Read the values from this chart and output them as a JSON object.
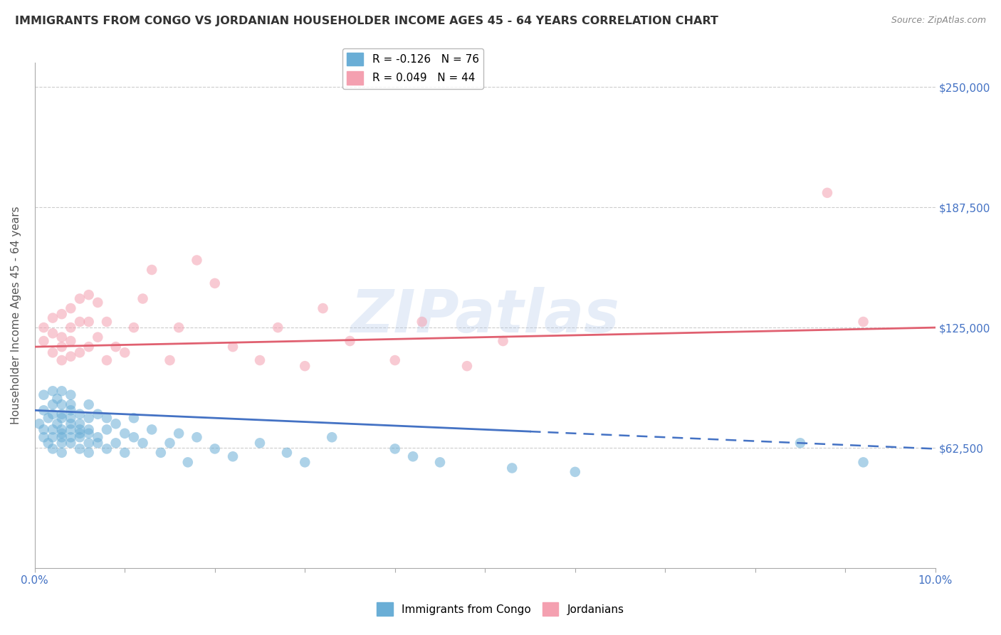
{
  "title": "IMMIGRANTS FROM CONGO VS JORDANIAN HOUSEHOLDER INCOME AGES 45 - 64 YEARS CORRELATION CHART",
  "source": "Source: ZipAtlas.com",
  "ylabel": "Householder Income Ages 45 - 64 years",
  "ytick_labels": [
    "$62,500",
    "$125,000",
    "$187,500",
    "$250,000"
  ],
  "ytick_values": [
    62500,
    125000,
    187500,
    250000
  ],
  "xlim": [
    0.0,
    0.1
  ],
  "ylim": [
    0,
    262500
  ],
  "watermark": "ZIPatlas",
  "legend_entries": [
    {
      "label": "R = -0.126   N = 76",
      "color": "#aec6e8"
    },
    {
      "label": "R = 0.049   N = 44",
      "color": "#f4b8c1"
    }
  ],
  "legend_labels": [
    "Immigrants from Congo",
    "Jordanians"
  ],
  "congo_color": "#6aaed6",
  "jordan_color": "#f4a0b0",
  "congo_line_color": "#4472c4",
  "jordan_line_color": "#e06070",
  "congo_R": -0.126,
  "congo_N": 76,
  "jordan_R": 0.049,
  "jordan_N": 44,
  "congo_x": [
    0.0005,
    0.001,
    0.001,
    0.001,
    0.001,
    0.0015,
    0.0015,
    0.002,
    0.002,
    0.002,
    0.002,
    0.002,
    0.002,
    0.0025,
    0.0025,
    0.003,
    0.003,
    0.003,
    0.003,
    0.003,
    0.003,
    0.003,
    0.003,
    0.003,
    0.004,
    0.004,
    0.004,
    0.004,
    0.004,
    0.004,
    0.004,
    0.004,
    0.005,
    0.005,
    0.005,
    0.005,
    0.005,
    0.005,
    0.006,
    0.006,
    0.006,
    0.006,
    0.006,
    0.006,
    0.007,
    0.007,
    0.007,
    0.008,
    0.008,
    0.008,
    0.009,
    0.009,
    0.01,
    0.01,
    0.011,
    0.011,
    0.012,
    0.013,
    0.014,
    0.015,
    0.016,
    0.017,
    0.018,
    0.02,
    0.022,
    0.025,
    0.028,
    0.03,
    0.033,
    0.04,
    0.042,
    0.045,
    0.053,
    0.06,
    0.085,
    0.092
  ],
  "congo_y": [
    75000,
    82000,
    68000,
    90000,
    72000,
    78000,
    65000,
    85000,
    72000,
    80000,
    68000,
    92000,
    62000,
    75000,
    88000,
    70000,
    78000,
    85000,
    65000,
    72000,
    92000,
    68000,
    80000,
    60000,
    75000,
    82000,
    68000,
    90000,
    72000,
    65000,
    78000,
    85000,
    70000,
    62000,
    80000,
    72000,
    68000,
    75000,
    65000,
    78000,
    70000,
    85000,
    60000,
    72000,
    65000,
    80000,
    68000,
    72000,
    62000,
    78000,
    65000,
    75000,
    70000,
    60000,
    68000,
    78000,
    65000,
    72000,
    60000,
    65000,
    70000,
    55000,
    68000,
    62000,
    58000,
    65000,
    60000,
    55000,
    68000,
    62000,
    58000,
    55000,
    52000,
    50000,
    65000,
    55000
  ],
  "jordan_x": [
    0.001,
    0.001,
    0.002,
    0.002,
    0.002,
    0.003,
    0.003,
    0.003,
    0.003,
    0.004,
    0.004,
    0.004,
    0.004,
    0.005,
    0.005,
    0.005,
    0.006,
    0.006,
    0.006,
    0.007,
    0.007,
    0.008,
    0.008,
    0.009,
    0.01,
    0.011,
    0.012,
    0.013,
    0.015,
    0.016,
    0.018,
    0.02,
    0.022,
    0.025,
    0.027,
    0.03,
    0.032,
    0.035,
    0.04,
    0.043,
    0.048,
    0.052,
    0.088,
    0.092
  ],
  "jordan_y": [
    118000,
    125000,
    112000,
    122000,
    130000,
    108000,
    120000,
    132000,
    115000,
    110000,
    125000,
    118000,
    135000,
    112000,
    128000,
    140000,
    115000,
    128000,
    142000,
    120000,
    138000,
    108000,
    128000,
    115000,
    112000,
    125000,
    140000,
    155000,
    108000,
    125000,
    160000,
    148000,
    115000,
    108000,
    125000,
    105000,
    135000,
    118000,
    108000,
    128000,
    105000,
    118000,
    195000,
    128000
  ]
}
